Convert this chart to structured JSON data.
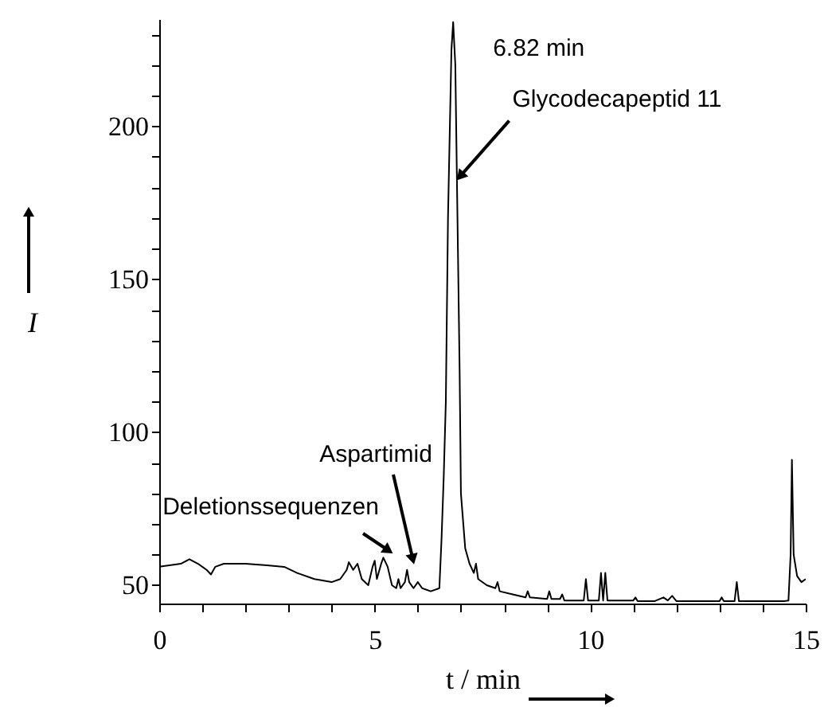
{
  "chart_data": {
    "type": "line",
    "xlabel": "t / min",
    "ylabel": "I",
    "x": [
      0,
      0.5,
      0.7,
      0.9,
      1.1,
      1.2,
      1.3,
      1.5,
      2,
      2.5,
      2.9,
      3.2,
      3.6,
      4.0,
      4.2,
      4.35,
      4.4,
      4.5,
      4.6,
      4.7,
      4.85,
      4.95,
      5.0,
      5.05,
      5.15,
      5.2,
      5.3,
      5.4,
      5.5,
      5.55,
      5.6,
      5.7,
      5.75,
      5.8,
      5.9,
      6.0,
      6.1,
      6.3,
      6.5,
      6.55,
      6.6,
      6.65,
      6.7,
      6.78,
      6.82,
      6.87,
      6.92,
      6.97,
      7.0,
      7.1,
      7.2,
      7.3,
      7.35,
      7.4,
      7.6,
      7.8,
      7.85,
      7.9,
      8.2,
      8.5,
      8.55,
      8.6,
      9.0,
      9.05,
      9.1,
      9.3,
      9.35,
      9.4,
      9.85,
      9.9,
      9.95,
      10.2,
      10.25,
      10.3,
      10.35,
      10.4,
      11,
      11.05,
      11.1,
      11.5,
      11.7,
      11.8,
      11.9,
      12,
      13,
      13.05,
      13.1,
      13.35,
      13.4,
      13.45,
      14.5,
      14.6,
      14.65,
      14.68,
      14.72,
      14.8,
      14.9,
      15.0
    ],
    "series": [
      {
        "color": "#000000",
        "values": [
          56,
          57,
          58.5,
          57,
          55,
          53.5,
          56,
          57,
          57,
          56.5,
          56,
          54,
          52,
          51,
          52,
          55,
          57.5,
          55,
          57,
          52,
          50,
          56,
          58,
          52,
          57,
          59,
          56,
          50,
          49,
          52,
          49,
          51,
          55,
          51,
          49,
          51,
          49,
          48,
          49,
          65,
          85,
          110,
          170,
          225,
          234,
          220,
          170,
          120,
          80,
          62,
          57,
          54,
          57,
          52,
          50,
          49,
          51,
          48,
          47,
          46,
          48,
          46,
          45.5,
          48,
          45.5,
          45.5,
          47,
          45,
          45,
          52,
          45,
          45,
          54,
          45,
          54,
          45,
          45,
          46,
          44.8,
          44.8,
          46,
          45,
          46.5,
          44.8,
          44.8,
          46,
          44.8,
          44.8,
          51,
          44.8,
          44.8,
          45,
          60,
          91,
          60,
          53,
          51,
          52
        ]
      }
    ],
    "xlim": [
      0,
      15
    ],
    "ylim": [
      44,
      235
    ],
    "xticks": [
      0,
      {
        "value": 1,
        "label": null
      },
      {
        "value": 2,
        "label": null
      },
      {
        "value": 3,
        "label": null
      },
      {
        "value": 4,
        "label": null
      },
      5,
      {
        "value": 6,
        "label": null
      },
      {
        "value": 7,
        "label": null
      },
      {
        "value": 8,
        "label": null
      },
      {
        "value": 9,
        "label": null
      },
      10,
      {
        "value": 11,
        "label": null
      },
      {
        "value": 12,
        "label": null
      },
      {
        "value": 13,
        "label": null
      },
      {
        "value": 14,
        "label": null
      },
      15
    ],
    "yticks": [
      50,
      {
        "value": 60,
        "label": null
      },
      {
        "value": 70,
        "label": null
      },
      {
        "value": 80,
        "label": null
      },
      {
        "value": 90,
        "label": null
      },
      100,
      {
        "value": 110,
        "label": null
      },
      {
        "value": 120,
        "label": null
      },
      {
        "value": 130,
        "label": null
      },
      {
        "value": 140,
        "label": null
      },
      150,
      {
        "value": 160,
        "label": null
      },
      {
        "value": 170,
        "label": null
      },
      {
        "value": 180,
        "label": null
      },
      {
        "value": 190,
        "label": null
      },
      200,
      {
        "value": 210,
        "label": null
      },
      {
        "value": 220,
        "label": null
      },
      {
        "value": 230,
        "label": null
      }
    ],
    "annotations": [
      {
        "text": "6.82 min",
        "x": 6.82,
        "y": 234
      },
      {
        "text": "Glycodecapeptid 11",
        "x": 6.9,
        "y": 182
      },
      "Deletionssequenzen",
      "Aspartimid"
    ],
    "grid": false,
    "marker": "none",
    "line_style": "solid"
  }
}
